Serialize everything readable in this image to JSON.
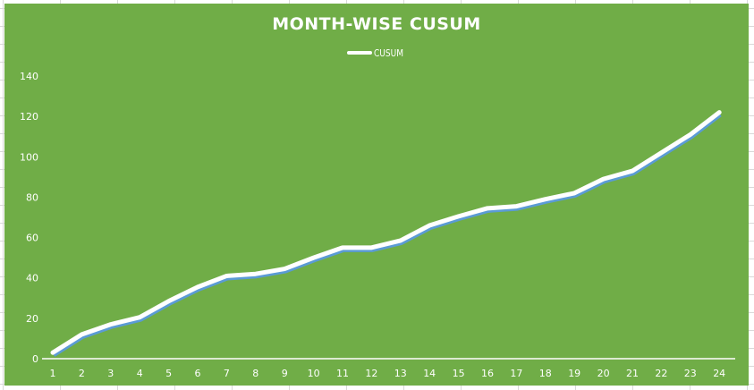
{
  "chart_data": {
    "type": "line",
    "title": "MONTH-WISE CUSUM",
    "xlabel": "",
    "ylabel": "",
    "categories": [
      "1",
      "2",
      "3",
      "4",
      "5",
      "6",
      "7",
      "8",
      "9",
      "10",
      "11",
      "12",
      "13",
      "14",
      "15",
      "16",
      "17",
      "18",
      "19",
      "20",
      "21",
      "22",
      "23",
      "24"
    ],
    "series": [
      {
        "name": "CUSUM",
        "values": [
          3,
          12,
          17,
          20.5,
          28.5,
          35.5,
          41,
          42,
          44.5,
          50,
          55,
          55,
          58.5,
          66,
          70.5,
          74.5,
          75.5,
          79,
          82,
          89,
          93,
          102,
          111,
          122
        ]
      }
    ],
    "ylim": [
      0,
      140
    ],
    "yticks": [
      0,
      20,
      40,
      60,
      80,
      100,
      120,
      140
    ],
    "grid": false,
    "drop_lines": true,
    "legend_position": "top"
  },
  "style": {
    "background": "#70ad47",
    "line_color": "#ffffff",
    "shadow_color": "#5b9bd5",
    "text_color": "#ffffff"
  }
}
